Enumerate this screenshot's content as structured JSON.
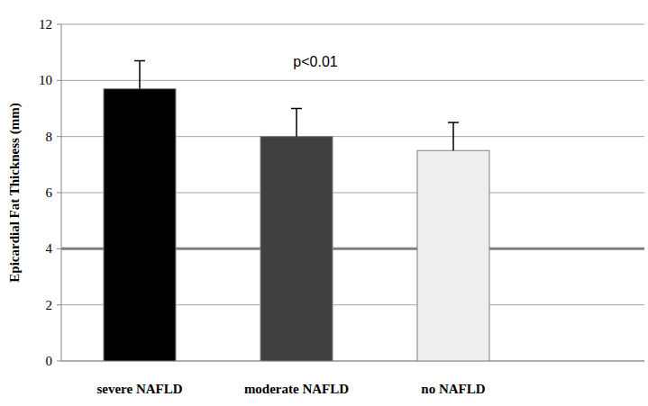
{
  "chart_data": {
    "type": "bar",
    "y_label": "Epicardial Fat Thickness (mm)",
    "annotation": "p<0.01",
    "categories": [
      "severe NAFLD",
      "moderate NAFLD",
      "no NAFLD"
    ],
    "values": [
      9.7,
      8.0,
      7.5
    ],
    "errors": [
      1.0,
      1.0,
      1.0
    ],
    "colors": [
      "#000000",
      "#404040",
      "#eeeeee"
    ],
    "reference_line": 4,
    "ylim": [
      0,
      12
    ],
    "yticks": [
      0,
      2,
      4,
      6,
      8,
      10,
      12
    ],
    "grid": true
  }
}
